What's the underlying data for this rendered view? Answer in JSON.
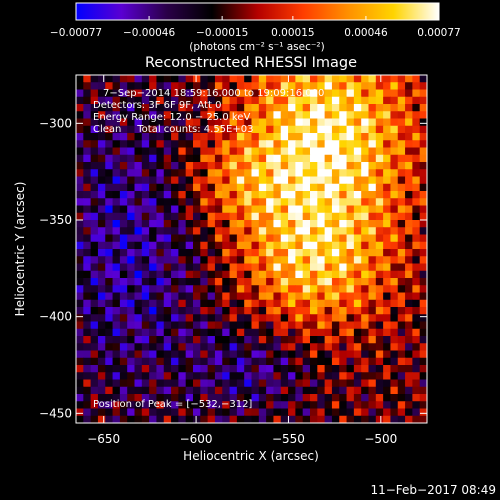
{
  "chart_data": {
    "type": "heatmap",
    "title": "Reconstructed RHESSI Image",
    "xlabel": "Heliocentric X (arcsec)",
    "ylabel": "Heliocentric Y (arcsec)",
    "xlim": [
      -665,
      -475
    ],
    "ylim": [
      -455,
      -275
    ],
    "x_ticks": [
      -650,
      -600,
      -550,
      -500
    ],
    "y_ticks": [
      -300,
      -350,
      -400,
      -450
    ],
    "x_tick_labels": [
      "−650",
      "−600",
      "−550",
      "−500"
    ],
    "y_tick_labels": [
      "−300",
      "−350",
      "−400",
      "−450"
    ],
    "colorbar": {
      "min": -0.00077,
      "max": 0.00077,
      "ticks": [
        -0.00077,
        -0.00046,
        -0.00015,
        0.00015,
        0.00046,
        0.00077
      ],
      "tick_labels": [
        "−0.00077",
        "−0.00046",
        "−0.00015",
        "0.00015",
        "0.00046",
        "0.00077"
      ],
      "unit": "(photons cm⁻² s⁻¹ asec⁻²)",
      "colormap": [
        "#0000ff",
        "#5a00d2",
        "#2a0048",
        "#000000",
        "#b40000",
        "#ff3c00",
        "#ff9000",
        "#ffd400",
        "#ffffff"
      ]
    },
    "annotations": [
      "7−Sep−2014 18:59:16.000 to 19:09:16.000",
      "Detectors: 3F 6F 9F, Att 0",
      "Energy Range: 12.0 − 25.0 keV",
      "Clean     Total counts: 4.55E+03"
    ],
    "peak_label": "Position of Peak = [−532,−312]",
    "peak": [
      -532,
      -312
    ]
  },
  "footer": {
    "timestamp": "11−Feb−2017 08:49"
  }
}
